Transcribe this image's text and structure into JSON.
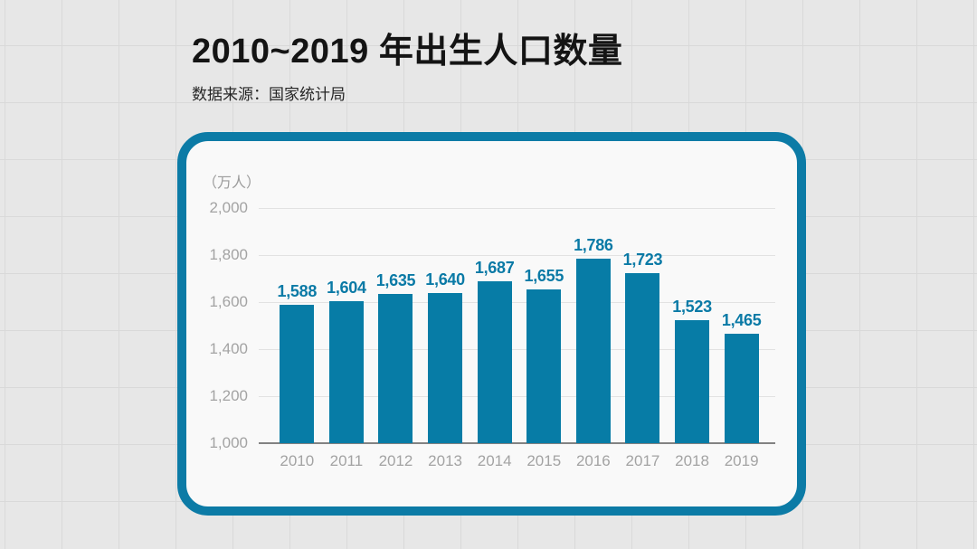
{
  "header": {
    "title": "2010~2019 年出生人口数量",
    "source": "数据来源：国家统计局"
  },
  "chart_data": {
    "type": "bar",
    "title": "2010~2019 年出生人口数量",
    "subtitle": "数据来源：国家统计局",
    "unit_label": "（万人）",
    "xlabel": "",
    "ylabel": "万人",
    "categories": [
      "2010",
      "2011",
      "2012",
      "2013",
      "2014",
      "2015",
      "2016",
      "2017",
      "2018",
      "2019"
    ],
    "values": [
      1588,
      1604,
      1635,
      1640,
      1687,
      1655,
      1786,
      1723,
      1523,
      1465
    ],
    "value_labels": [
      "1,588",
      "1,604",
      "1,635",
      "1,640",
      "1,687",
      "1,655",
      "1,786",
      "1,723",
      "1,523",
      "1,465"
    ],
    "yticks": [
      2000,
      1800,
      1600,
      1400,
      1200,
      1000
    ],
    "ytick_labels": [
      "2,000",
      "1,800",
      "1,600",
      "1,400",
      "1,200",
      "1,000"
    ],
    "ylim": [
      1000,
      2000
    ],
    "grid": true,
    "legend_position": "none",
    "colors": {
      "bar": "#077ca6",
      "value_label": "#0a7aa6",
      "card_border": "#0c7ba6",
      "card_background": "#f9f9f9",
      "axis_text": "#a3a3a3",
      "gridline": "#e2e2e2",
      "baseline": "#828282",
      "page_background": "#e7e7e7"
    }
  }
}
